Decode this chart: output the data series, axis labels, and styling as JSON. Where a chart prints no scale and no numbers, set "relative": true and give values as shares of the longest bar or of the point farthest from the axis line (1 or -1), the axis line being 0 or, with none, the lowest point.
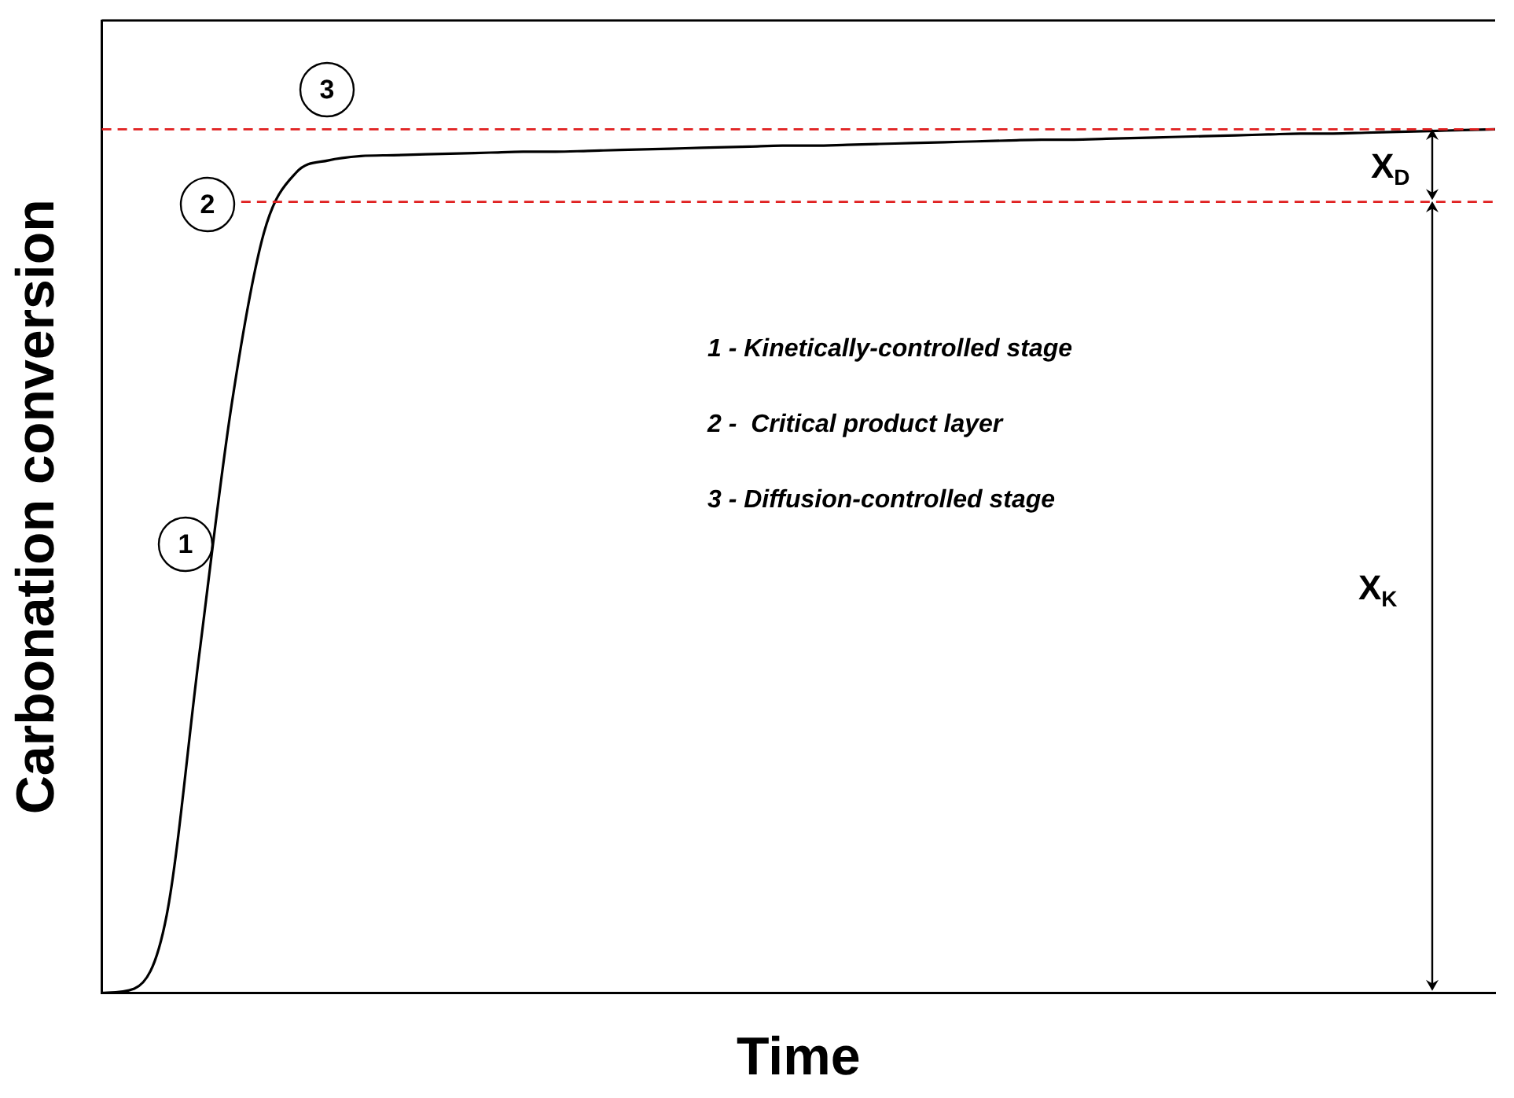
{
  "chart_data": {
    "type": "line",
    "relative": true,
    "xlabel": "Time",
    "ylabel": "Carbonation conversion",
    "categories": [
      null,
      null,
      null,
      null,
      null,
      null,
      null,
      null,
      null,
      null,
      null,
      null,
      null,
      null,
      null,
      null,
      null,
      null,
      null,
      null,
      null,
      null,
      null,
      null,
      null,
      null,
      null,
      null,
      null,
      null,
      null,
      null,
      null,
      null,
      null,
      null,
      null,
      null,
      null,
      null,
      null,
      null,
      null,
      null
    ],
    "series": [
      {
        "color": "#000000",
        "values": [
          0,
          0.005,
          0.09,
          0.39,
          0.68,
          0.88,
          0.95,
          0.964,
          0.969,
          0.97,
          0.971,
          0.972,
          0.973,
          0.974,
          0.974,
          0.975,
          0.976,
          0.977,
          0.978,
          0.979,
          0.98,
          0.981,
          0.981,
          0.982,
          0.983,
          0.984,
          0.985,
          0.986,
          0.987,
          0.988,
          0.988,
          0.989,
          0.99,
          0.991,
          0.992,
          0.993,
          0.994,
          0.995,
          0.995,
          0.996,
          0.997,
          0.998,
          0.999,
          1.0
        ]
      }
    ],
    "ref_lines": [
      {
        "axis": "y",
        "value": 1.0,
        "color": "#e02020",
        "line_style": "dashed"
      },
      {
        "axis": "y",
        "value": 0.916,
        "color": "#e02020",
        "line_style": "dashed"
      }
    ],
    "annotations": [
      "1",
      "2",
      "3",
      "1 - Kinetically-controlled stage",
      "2 -  Critical product layer",
      "3 - Diffusion-controlled stage",
      "X$_{D}$",
      "X$_{K}$"
    ],
    "grid": false,
    "legend": false,
    "marker": "none",
    "line_style": "solid"
  }
}
